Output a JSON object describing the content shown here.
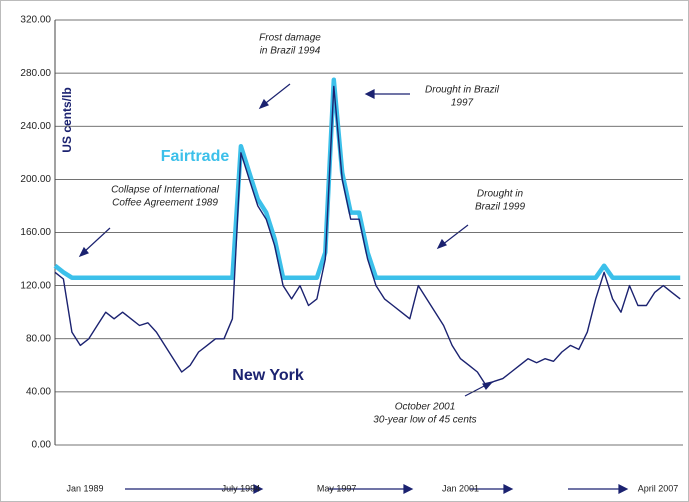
{
  "chart_data": {
    "type": "line",
    "ylabel": "US cents/lb",
    "x": [
      "1989-01",
      "1989-04",
      "1989-07",
      "1989-10",
      "1990-01",
      "1990-04",
      "1990-07",
      "1990-10",
      "1991-01",
      "1991-04",
      "1991-07",
      "1991-10",
      "1992-01",
      "1992-04",
      "1992-07",
      "1992-10",
      "1993-01",
      "1993-04",
      "1993-07",
      "1993-10",
      "1994-01",
      "1994-04",
      "1994-07",
      "1994-10",
      "1995-01",
      "1995-04",
      "1995-07",
      "1995-10",
      "1996-01",
      "1996-04",
      "1996-07",
      "1996-10",
      "1997-01",
      "1997-04",
      "1997-07",
      "1997-10",
      "1998-01",
      "1998-04",
      "1998-07",
      "1998-10",
      "1999-01",
      "1999-04",
      "1999-07",
      "1999-10",
      "2000-01",
      "2000-04",
      "2000-07",
      "2000-10",
      "2001-01",
      "2001-04",
      "2001-07",
      "2001-10",
      "2002-01",
      "2002-04",
      "2002-07",
      "2002-10",
      "2003-01",
      "2003-04",
      "2003-07",
      "2003-10",
      "2004-01",
      "2004-04",
      "2004-07",
      "2004-10",
      "2005-01",
      "2005-04",
      "2005-07",
      "2005-10",
      "2006-01",
      "2006-04",
      "2006-07",
      "2006-10",
      "2007-01",
      "2007-04",
      "2007-07"
    ],
    "series": [
      {
        "name": "Fairtrade",
        "color": "#3cc0ea",
        "values": [
          135,
          130,
          126,
          126,
          126,
          126,
          126,
          126,
          126,
          126,
          126,
          126,
          126,
          126,
          126,
          126,
          126,
          126,
          126,
          126,
          126,
          126,
          225,
          205,
          185,
          175,
          155,
          126,
          126,
          126,
          126,
          126,
          145,
          275,
          205,
          175,
          175,
          145,
          126,
          126,
          126,
          126,
          126,
          126,
          126,
          126,
          126,
          126,
          126,
          126,
          126,
          126,
          126,
          126,
          126,
          126,
          126,
          126,
          126,
          126,
          126,
          126,
          126,
          126,
          126,
          135,
          126,
          126,
          126,
          126,
          126,
          126,
          126,
          126,
          126
        ]
      },
      {
        "name": "New York",
        "color": "#1b2270",
        "values": [
          130,
          125,
          85,
          75,
          80,
          90,
          100,
          95,
          100,
          95,
          90,
          92,
          85,
          75,
          65,
          55,
          60,
          70,
          75,
          80,
          80,
          95,
          220,
          200,
          180,
          170,
          150,
          120,
          110,
          120,
          105,
          110,
          140,
          270,
          200,
          170,
          170,
          140,
          120,
          110,
          105,
          100,
          95,
          120,
          110,
          100,
          90,
          75,
          65,
          60,
          55,
          45,
          48,
          50,
          55,
          60,
          65,
          62,
          65,
          63,
          70,
          75,
          72,
          85,
          110,
          130,
          110,
          100,
          120,
          105,
          105,
          115,
          120,
          115,
          110
        ]
      }
    ],
    "xlim": [
      "1989-01",
      "2007-08"
    ],
    "xticks": [
      {
        "value": "1989-01",
        "label": "Jan 1989"
      },
      {
        "value": "1994-07",
        "label": "July 1994"
      },
      {
        "value": "1997-05",
        "label": "May 1997"
      },
      {
        "value": "2001-01",
        "label": "Jan 2001"
      },
      {
        "value": "2007-04",
        "label": "April 2007"
      }
    ],
    "ylim": [
      0,
      320
    ],
    "yticks": [
      {
        "value": 0,
        "label": "0.00"
      },
      {
        "value": 40,
        "label": "40.00"
      },
      {
        "value": 80,
        "label": "80.00"
      },
      {
        "value": 120,
        "label": "120.00"
      },
      {
        "value": 160,
        "label": "160.00"
      },
      {
        "value": 200,
        "label": "200.00"
      },
      {
        "value": 240,
        "label": "240.00"
      },
      {
        "value": 280,
        "label": "280.00"
      },
      {
        "value": 320,
        "label": "320.00"
      }
    ],
    "grid": true,
    "annotations": [
      {
        "lines": [
          "Frost damage",
          "in Brazil 1994"
        ]
      },
      {
        "lines": [
          "Drought in Brazil",
          "1997"
        ]
      },
      {
        "lines": [
          "Collapse of International",
          "Coffee Agreement 1989"
        ]
      },
      {
        "lines": [
          "Drought in",
          "Brazil 1999"
        ]
      },
      {
        "lines": [
          "October 2001",
          "30-year low of 45 cents"
        ]
      }
    ]
  }
}
